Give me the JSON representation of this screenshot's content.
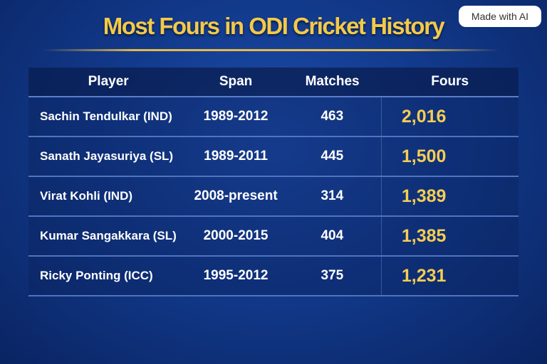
{
  "header": {
    "title": "Most Fours in ODI Cricket History",
    "badge": "Made with AI"
  },
  "table": {
    "columns": [
      "Player",
      "Span",
      "Matches",
      "Fours"
    ],
    "rows": [
      [
        "Sachin Tendulkar (IND)",
        "1989-2012",
        "463",
        "2,016"
      ],
      [
        "Sanath Jayasuriya (SL)",
        "1989-2011",
        "445",
        "1,500"
      ],
      [
        "Virat Kohli (IND)",
        "2008-present",
        "314",
        "1,389"
      ],
      [
        "Kumar Sangakkara (SL)",
        "2000-2015",
        "404",
        "1,385"
      ],
      [
        "Ricky Ponting (ICC)",
        "1995-2012",
        "375",
        "1,231"
      ]
    ]
  }
}
